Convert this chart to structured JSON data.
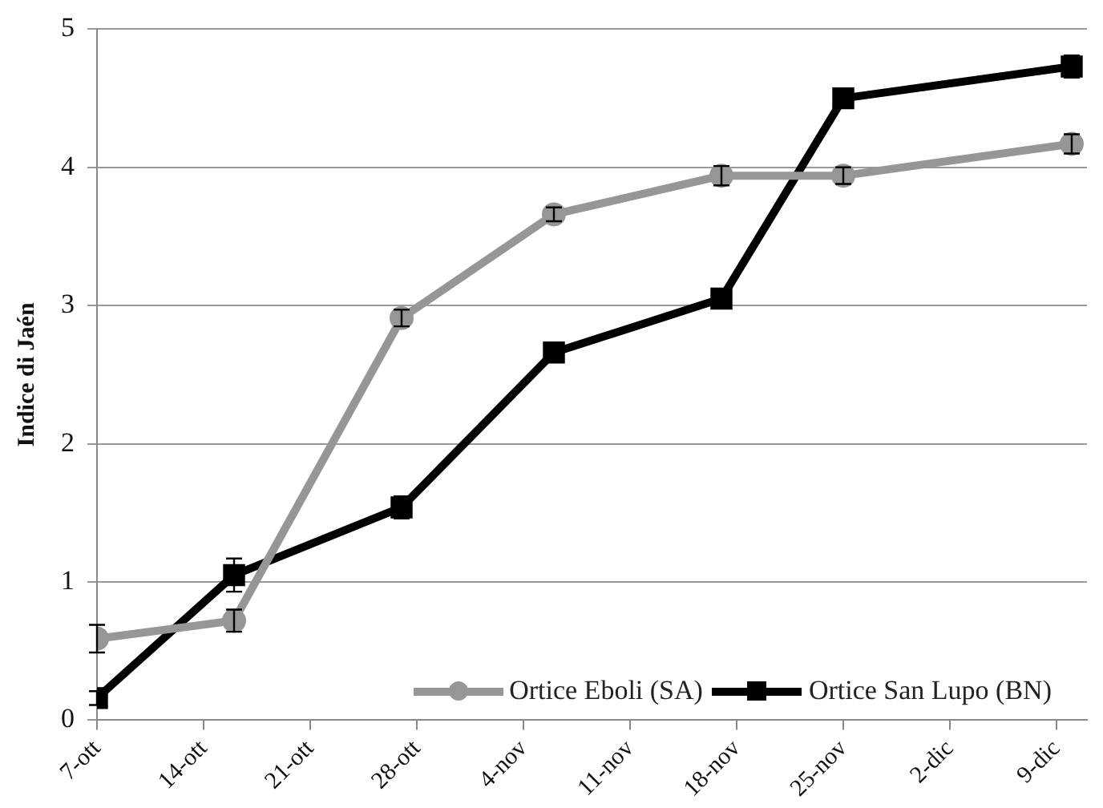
{
  "chart_data": {
    "type": "line",
    "ylabel": "Indice di Jaén",
    "x": [
      "--10-07",
      "--10-16",
      "--10-27",
      "--11-06",
      "--11-17",
      "--11-25",
      "--12-10"
    ],
    "series": [
      {
        "name": "Ortice Eboli (SA)",
        "color": "#969696",
        "marker": "circle",
        "values": [
          0.59,
          0.72,
          2.91,
          3.66,
          3.94,
          3.94,
          4.17
        ],
        "errors": [
          0.1,
          0.08,
          0.06,
          0.05,
          0.07,
          0.06,
          0.07
        ]
      },
      {
        "name": "Ortice San Lupo (BN)",
        "color": "#000000",
        "marker": "square",
        "values": [
          0.16,
          1.05,
          1.54,
          2.66,
          3.05,
          4.5,
          4.73
        ],
        "errors": [
          0.05,
          0.12,
          0.08,
          null,
          null,
          null,
          0.08
        ]
      }
    ],
    "xlim": [
      "--10-07",
      "--12-11"
    ],
    "xticks": [
      {
        "value": "--10-07",
        "label": "7-ott"
      },
      {
        "value": "--10-14",
        "label": "14-ott"
      },
      {
        "value": "--10-21",
        "label": "21-ott"
      },
      {
        "value": "--10-28",
        "label": "28-ott"
      },
      {
        "value": "--11-04",
        "label": "4-nov"
      },
      {
        "value": "--11-11",
        "label": "11-nov"
      },
      {
        "value": "--11-18",
        "label": "18-nov"
      },
      {
        "value": "--11-25",
        "label": "25-nov"
      },
      {
        "value": "--12-02",
        "label": "2-dic"
      },
      {
        "value": "--12-09",
        "label": "9-dic"
      }
    ],
    "ylim": [
      0,
      5
    ],
    "yticks": [
      0,
      1,
      2,
      3,
      4,
      5
    ],
    "grid": "y",
    "legend": "bottom right",
    "line_style": "solid"
  }
}
